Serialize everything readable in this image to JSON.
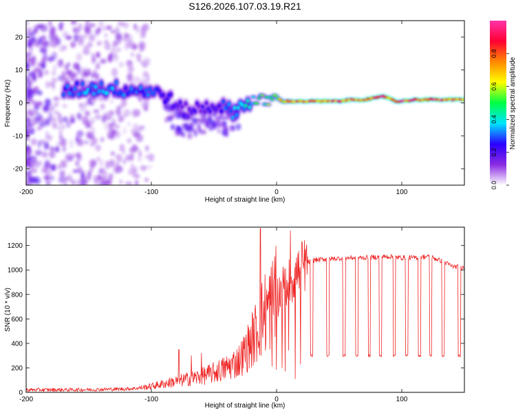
{
  "title": "S126.2026.107.03.19.R21",
  "colors": {
    "snr_line": "#ee2222",
    "axis": "#000000",
    "colormap": [
      "#ffffff",
      "#8a2be2",
      "#2a00ff",
      "#00e5ff",
      "#00ff44",
      "#ffff00",
      "#ff8800",
      "#ff0033",
      "#ff33aa"
    ]
  },
  "chart_data": [
    {
      "type": "heatmap",
      "title": "S126.2026.107.03.19.R21",
      "xlabel": "Height of straight line (km)",
      "ylabel": "Frequency (Hz)",
      "xlim": [
        -200,
        150
      ],
      "ylim": [
        -25,
        25
      ],
      "xticks": [
        -200,
        -100,
        0,
        100
      ],
      "xtick_labels": [
        "-200",
        "-100",
        "0",
        "100"
      ],
      "yticks": [
        -20,
        -10,
        0,
        10,
        20
      ],
      "ytick_labels": [
        "-20",
        "-10",
        "0",
        "10",
        "20"
      ],
      "colorbar": {
        "label": "Normalized spectral amplitude",
        "range": [
          0,
          1
        ],
        "ticks": [
          0.0,
          0.2,
          0.4,
          0.6,
          0.8
        ],
        "tick_labels": [
          "0.0",
          "0.2",
          "0.4",
          "0.6",
          "0.8"
        ]
      },
      "ridge": {
        "x": [
          -170,
          -160,
          -150,
          -140,
          -130,
          -120,
          -110,
          -100,
          -95,
          -90,
          -85,
          -80,
          -75,
          -70,
          -65,
          -60,
          -55,
          -50,
          -45,
          -40,
          -35,
          -30,
          -25,
          -20,
          -15,
          -10,
          -5,
          0,
          5,
          10,
          20,
          30,
          40,
          50,
          60,
          70,
          80,
          85,
          90,
          95,
          100,
          110,
          120,
          130,
          140,
          150
        ],
        "freq": [
          3.5,
          4,
          4.5,
          4.5,
          4.5,
          4,
          4,
          3.5,
          3,
          2.5,
          1,
          -1,
          -2,
          -2.5,
          -1.5,
          -2,
          -1,
          -1,
          -0.5,
          -2,
          -2.5,
          -1.5,
          0,
          0.5,
          0.5,
          0.5,
          1,
          1.5,
          0.5,
          0.5,
          0.5,
          0.5,
          0.5,
          0.5,
          1,
          1,
          1.5,
          2,
          1.5,
          0.5,
          0.5,
          1,
          1,
          1,
          1,
          1
        ],
        "amplitude": [
          0.3,
          0.3,
          0.35,
          0.35,
          0.35,
          0.3,
          0.3,
          0.3,
          0.25,
          0.25,
          0.25,
          0.2,
          0.2,
          0.2,
          0.2,
          0.2,
          0.2,
          0.2,
          0.25,
          0.3,
          0.35,
          0.4,
          0.4,
          0.45,
          0.5,
          0.55,
          0.6,
          0.65,
          0.7,
          0.75,
          0.85,
          0.8,
          0.85,
          0.85,
          0.8,
          0.85,
          0.9,
          0.9,
          0.85,
          0.85,
          0.9,
          0.85,
          0.9,
          0.9,
          0.85,
          0.85
        ]
      }
    },
    {
      "type": "line",
      "xlabel": "Height of straight line (km)",
      "ylabel": "SNR (10 * v/v)",
      "xlim": [
        -200,
        150
      ],
      "ylim": [
        0,
        1350
      ],
      "xticks": [
        -200,
        -100,
        0,
        100
      ],
      "xtick_labels": [
        "-200",
        "-100",
        "0",
        "100"
      ],
      "yticks": [
        0,
        200,
        400,
        600,
        800,
        1000,
        1200
      ],
      "ytick_labels": [
        "0",
        "200",
        "400",
        "600",
        "800",
        "1000",
        "1200"
      ],
      "envelope": {
        "x": [
          -200,
          -150,
          -120,
          -110,
          -100,
          -90,
          -80,
          -70,
          -60,
          -50,
          -40,
          -30,
          -25,
          -20,
          -15,
          -10,
          -5,
          0,
          5,
          10,
          15,
          20,
          25,
          30,
          40,
          50,
          60,
          70,
          80,
          90,
          100,
          110,
          120,
          125,
          130,
          135,
          140,
          150
        ],
        "snr": [
          20,
          22,
          28,
          35,
          50,
          70,
          90,
          110,
          130,
          160,
          200,
          260,
          330,
          420,
          520,
          650,
          700,
          780,
          850,
          900,
          960,
          1020,
          1060,
          1080,
          1090,
          1095,
          1100,
          1100,
          1105,
          1110,
          1100,
          1100,
          1110,
          1100,
          1080,
          1060,
          1030,
          1020
        ]
      },
      "spikes": [
        {
          "x": -13,
          "snr": 1340
        },
        {
          "x": 11,
          "snr": 1320
        },
        {
          "x": -78,
          "snr": 350
        },
        {
          "x": -68,
          "snr": 300
        },
        {
          "x": -60,
          "snr": 320
        }
      ],
      "dropouts": {
        "snr": 300,
        "x_ranges": [
          [
            27,
            29
          ],
          [
            40,
            42
          ],
          [
            53,
            55
          ],
          [
            63,
            65
          ],
          [
            73,
            75
          ],
          [
            82,
            84
          ],
          [
            93,
            95
          ],
          [
            103,
            105
          ],
          [
            113,
            115
          ],
          [
            122,
            124
          ],
          [
            132,
            134
          ],
          [
            145,
            147
          ]
        ]
      }
    }
  ]
}
